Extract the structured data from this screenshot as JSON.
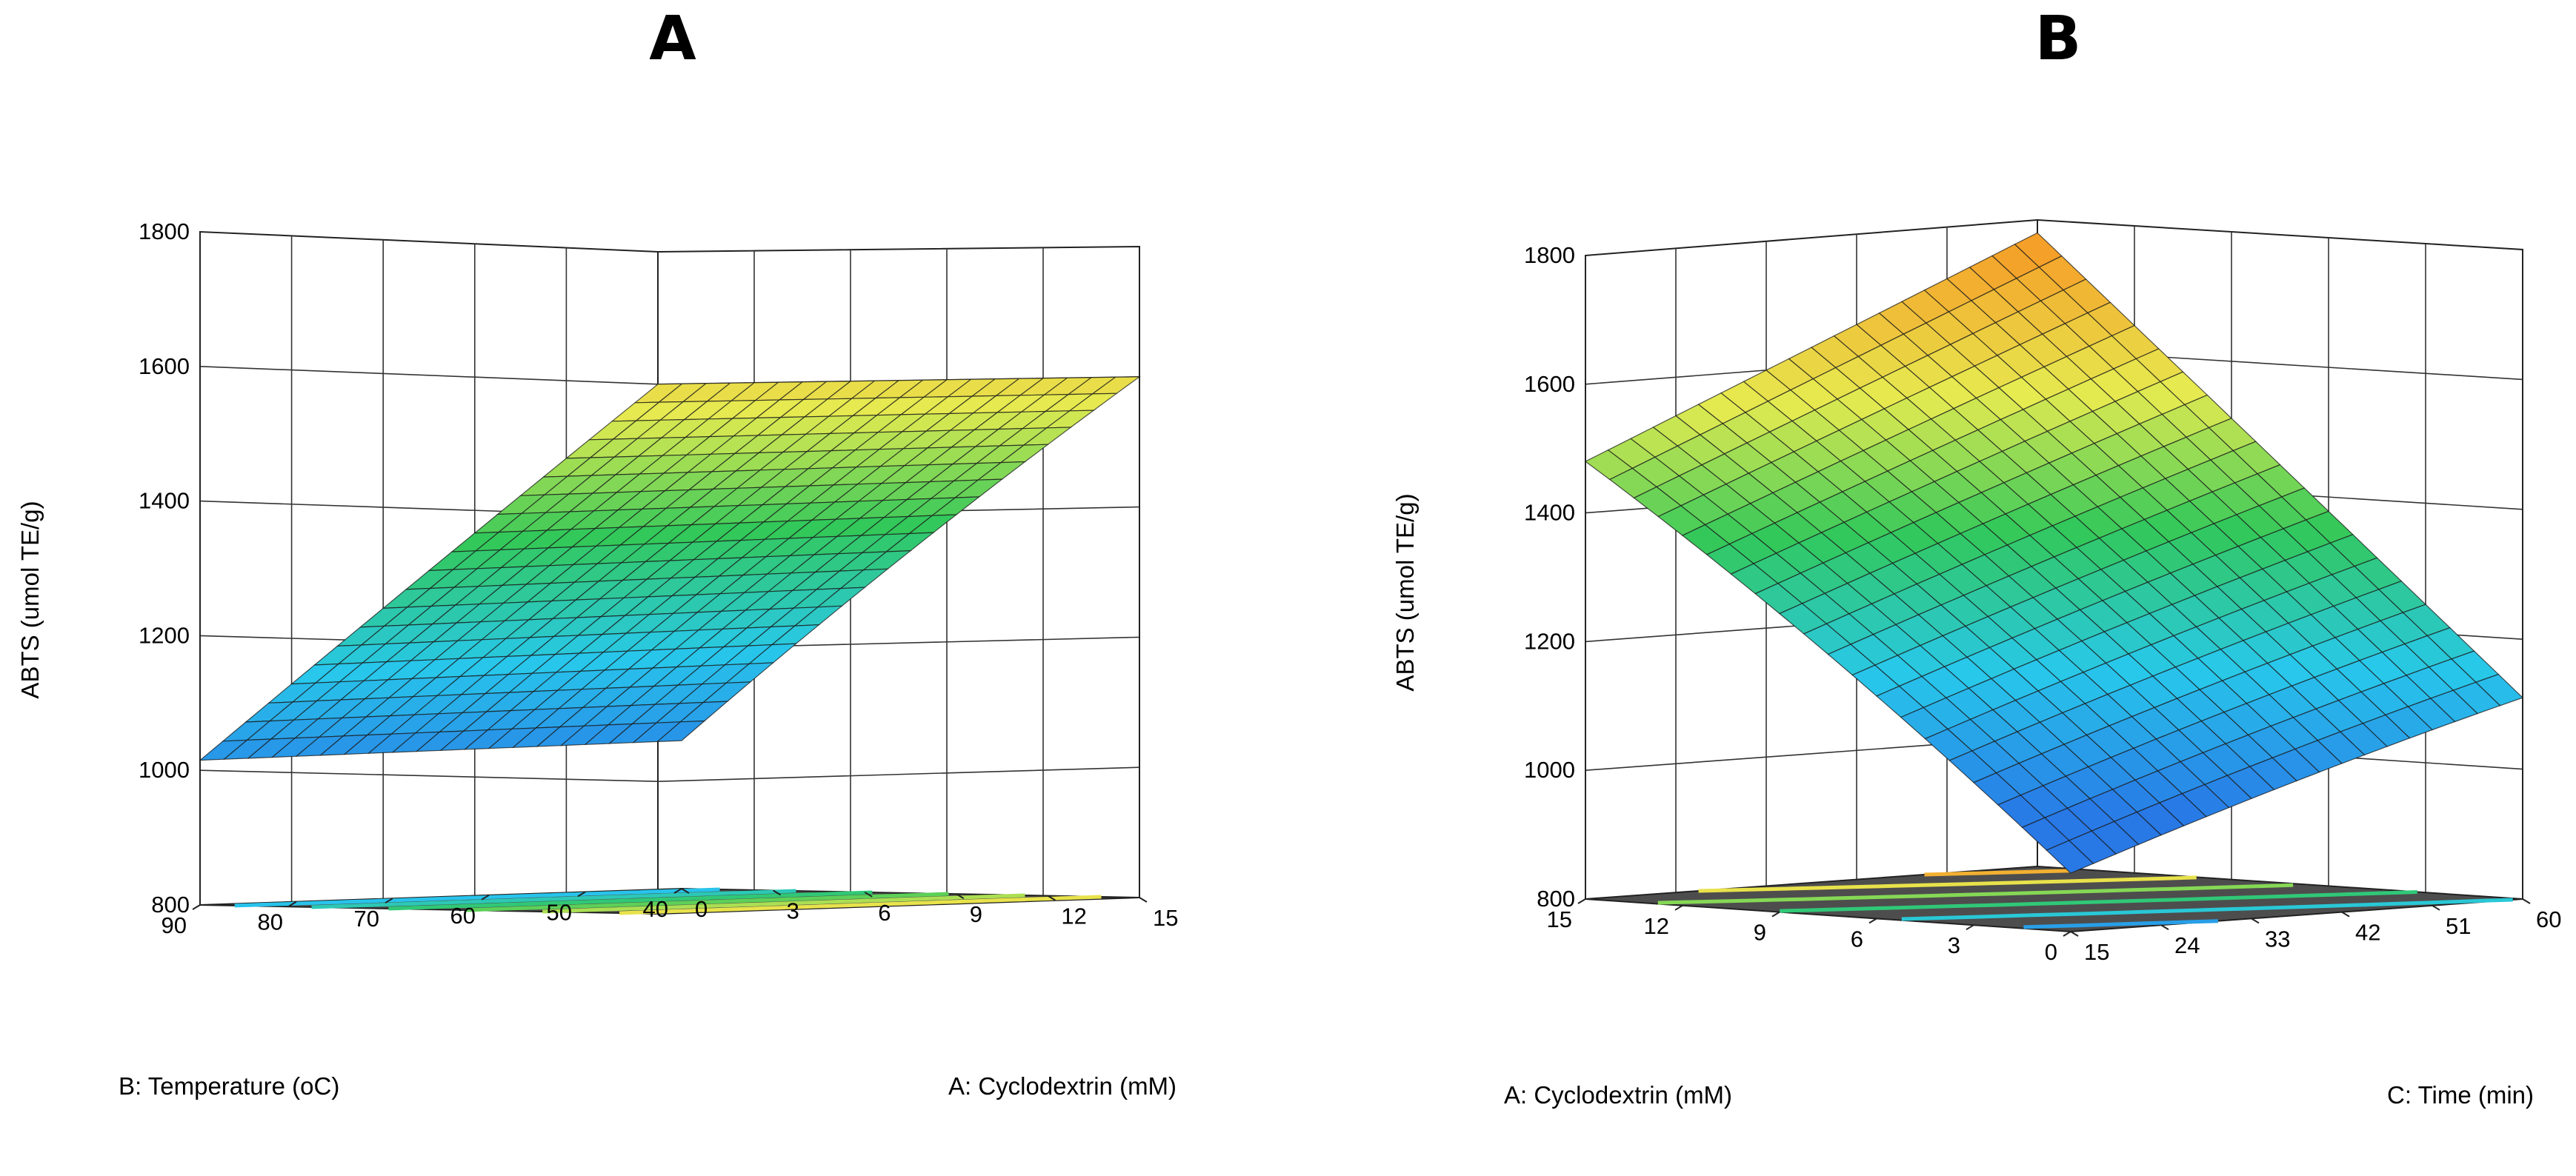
{
  "chart_data": [
    {
      "panel_label": "A",
      "type": "surface3d",
      "zlabel": "ABTS (umol TE/g)",
      "xlabel": "A: Cyclodextrin (mM)",
      "ylabel": "B: Temperature (oC)",
      "x_ticks": [
        "0",
        "3",
        "6",
        "9",
        "12",
        "15"
      ],
      "y_ticks": [
        "40",
        "50",
        "60",
        "70",
        "80",
        "90"
      ],
      "z_ticks": [
        "800",
        "1000",
        "1200",
        "1400",
        "1600",
        "1800"
      ],
      "x_range": [
        0,
        15
      ],
      "y_range": [
        40,
        90
      ],
      "z_range": [
        800,
        1800
      ],
      "surface_corners": {
        "x0_ymin": 1010,
        "x0_ymax": 1015,
        "x15_ymin": 1600,
        "x15_ymax": 1600
      },
      "contour_lines": 6
    },
    {
      "panel_label": "B",
      "type": "surface3d",
      "zlabel": "ABTS (umol TE/g)",
      "xlabel": "A: Cyclodextrin (mM)",
      "ylabel": "C: Time (min)",
      "x_ticks": [
        "0",
        "3",
        "6",
        "9",
        "12",
        "15"
      ],
      "y_ticks": [
        "15",
        "24",
        "33",
        "42",
        "51",
        "60"
      ],
      "z_ticks": [
        "800",
        "1000",
        "1200",
        "1400",
        "1600",
        "1800"
      ],
      "x_range": [
        0,
        15
      ],
      "y_range": [
        15,
        60
      ],
      "z_range": [
        800,
        1800
      ],
      "surface_corners": {
        "x0_ymin": 880,
        "x0_ymax": 1110,
        "x15_ymin": 1480,
        "x15_ymax": 1780
      },
      "contour_lines": 6
    }
  ]
}
